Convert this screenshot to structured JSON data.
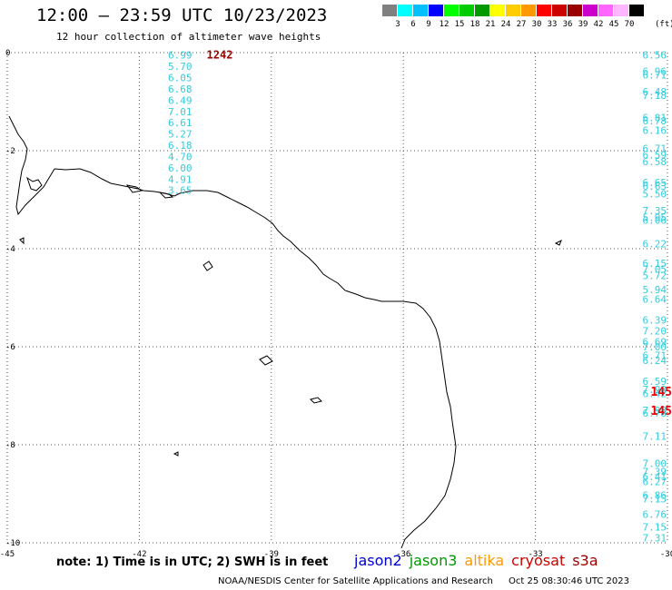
{
  "header": {
    "title": "12:00 – 23:59 UTC 10/23/2023",
    "subtitle": "12 hour collection of altimeter wave heights"
  },
  "legend": {
    "colors": [
      "#808080",
      "#00ffff",
      "#00bfff",
      "#0000ff",
      "#00ff00",
      "#00cc00",
      "#009900",
      "#ffff00",
      "#ffcc00",
      "#ff9900",
      "#ff0000",
      "#cc0000",
      "#990000",
      "#cc00cc",
      "#ff66ff",
      "#ffb6ff",
      "#000000"
    ],
    "labels": [
      "3",
      "6",
      "9",
      "12",
      "15",
      "18",
      "21",
      "24",
      "27",
      "30",
      "33",
      "36",
      "39",
      "42",
      "45",
      "70"
    ],
    "unit": "(ft)"
  },
  "axes": {
    "x_ticks": [
      "-45",
      "-42",
      "-39",
      "-36",
      "-33",
      "-30"
    ],
    "y_ticks": [
      "0",
      "-2",
      "-4",
      "-6",
      "-8",
      "-10"
    ],
    "lon_range": [
      -45,
      -30
    ],
    "lat_range": [
      -10,
      0
    ]
  },
  "track_west": {
    "color": "#33ccdd",
    "lon": -40.8,
    "points": [
      {
        "lat": -0.05,
        "value": "6.99"
      },
      {
        "lat": -0.28,
        "value": "5.70"
      },
      {
        "lat": -0.51,
        "value": "6.05"
      },
      {
        "lat": -0.74,
        "value": "6.68"
      },
      {
        "lat": -0.97,
        "value": "6.49"
      },
      {
        "lat": -1.2,
        "value": "7.01"
      },
      {
        "lat": -1.43,
        "value": "6.61"
      },
      {
        "lat": -1.66,
        "value": "5.27"
      },
      {
        "lat": -1.89,
        "value": "6.18"
      },
      {
        "lat": -2.12,
        "value": "4.70"
      },
      {
        "lat": -2.35,
        "value": "6.00"
      },
      {
        "lat": -2.58,
        "value": "4.91"
      },
      {
        "lat": -2.81,
        "value": "3.65"
      }
    ]
  },
  "highlight_label": {
    "value": "1242",
    "color": "#990000"
  },
  "track_east": {
    "color": "#33ccdd",
    "points": [
      {
        "lat": -0.05,
        "value": "6.56"
      },
      {
        "lat": -0.38,
        "value": "6.96"
      },
      {
        "lat": -0.45,
        "value": "6.71"
      },
      {
        "lat": -0.8,
        "value": "6.48"
      },
      {
        "lat": -0.87,
        "value": "7.18"
      },
      {
        "lat": -1.32,
        "value": "6.81"
      },
      {
        "lat": -1.39,
        "value": "6.78"
      },
      {
        "lat": -1.58,
        "value": "6.16"
      },
      {
        "lat": -1.95,
        "value": "6.71"
      },
      {
        "lat": -2.08,
        "value": "6.59"
      },
      {
        "lat": -2.22,
        "value": "6.58"
      },
      {
        "lat": -2.65,
        "value": "6.65"
      },
      {
        "lat": -2.72,
        "value": "6.63"
      },
      {
        "lat": -2.88,
        "value": "5.50"
      },
      {
        "lat": -3.22,
        "value": "7.35"
      },
      {
        "lat": -3.36,
        "value": "5.95"
      },
      {
        "lat": -3.42,
        "value": "6.06"
      },
      {
        "lat": -3.9,
        "value": "6.22"
      },
      {
        "lat": -4.3,
        "value": "6.15"
      },
      {
        "lat": -4.42,
        "value": "7.05"
      },
      {
        "lat": -4.55,
        "value": "5.72"
      },
      {
        "lat": -4.83,
        "value": "5.94"
      },
      {
        "lat": -5.03,
        "value": "6.64"
      },
      {
        "lat": -5.45,
        "value": "6.39"
      },
      {
        "lat": -5.68,
        "value": "7.20"
      },
      {
        "lat": -5.9,
        "value": "6.69"
      },
      {
        "lat": -6.0,
        "value": "7.00"
      },
      {
        "lat": -6.18,
        "value": "6.71"
      },
      {
        "lat": -6.28,
        "value": "6.24"
      },
      {
        "lat": -6.7,
        "value": "6.59"
      },
      {
        "lat": -6.87,
        "value": "7.98"
      },
      {
        "lat": -6.95,
        "value": "6.42"
      },
      {
        "lat": -7.3,
        "value": "7.98"
      },
      {
        "lat": -7.35,
        "value": "6.78"
      },
      {
        "lat": -7.82,
        "value": "7.11"
      },
      {
        "lat": -8.38,
        "value": "7.00"
      },
      {
        "lat": -8.55,
        "value": "7.39"
      },
      {
        "lat": -8.65,
        "value": "6.41"
      },
      {
        "lat": -8.75,
        "value": "6.27"
      },
      {
        "lat": -9.03,
        "value": "6.86"
      },
      {
        "lat": -9.1,
        "value": "7.15"
      },
      {
        "lat": -9.42,
        "value": "6.76"
      },
      {
        "lat": -9.68,
        "value": "7.15"
      },
      {
        "lat": -9.9,
        "value": "7.31"
      }
    ]
  },
  "red_labels": [
    {
      "lat": -6.91,
      "value": "145"
    },
    {
      "lat": -7.3,
      "value": "145"
    }
  ],
  "footer": {
    "note": "note: 1) Time is in UTC; 2) SWH is in feet",
    "satellites": [
      {
        "name": "jason2",
        "color": "#0000cc"
      },
      {
        "name": "jason3",
        "color": "#009900"
      },
      {
        "name": "altika",
        "color": "#ff9900"
      },
      {
        "name": "cryosat",
        "color": "#cc0000"
      },
      {
        "name": "s3a",
        "color": "#990000"
      }
    ],
    "credit": "NOAA/NESDIS Center for Satellite Applications and Research",
    "timestamp": "Oct 25 08:30:46 UTC 2023"
  }
}
